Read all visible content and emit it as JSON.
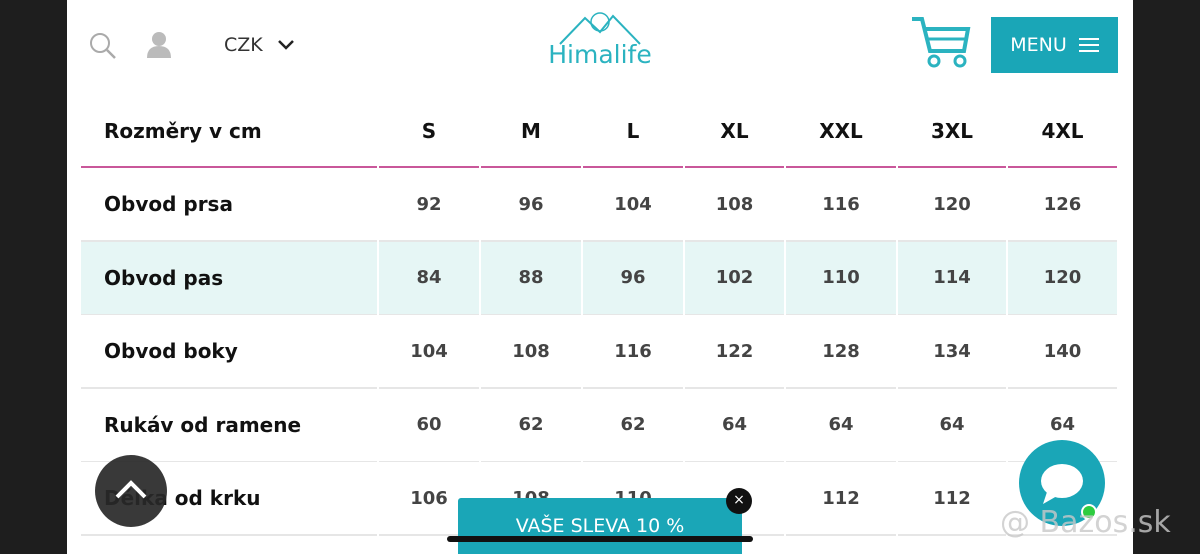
{
  "header": {
    "currency": "CZK",
    "logo": "Himalife",
    "menu": "MENU"
  },
  "table": {
    "columns": [
      "Rozměry v cm",
      "S",
      "M",
      "L",
      "XL",
      "XXL",
      "3XL",
      "4XL"
    ],
    "rows": [
      [
        "Obvod prsa",
        92,
        96,
        104,
        108,
        116,
        120,
        126
      ],
      [
        "Obvod pas",
        84,
        88,
        96,
        102,
        110,
        114,
        120
      ],
      [
        "Obvod boky",
        104,
        108,
        116,
        122,
        128,
        134,
        140
      ],
      [
        "Rukáv od ramene",
        60,
        62,
        62,
        64,
        64,
        64,
        64
      ],
      [
        "Délka od krku",
        106,
        108,
        110,
        null,
        112,
        112,
        null
      ]
    ]
  },
  "promo": "VAŠE SLEVA 10 %",
  "watermark": "@ Bazos.sk"
}
